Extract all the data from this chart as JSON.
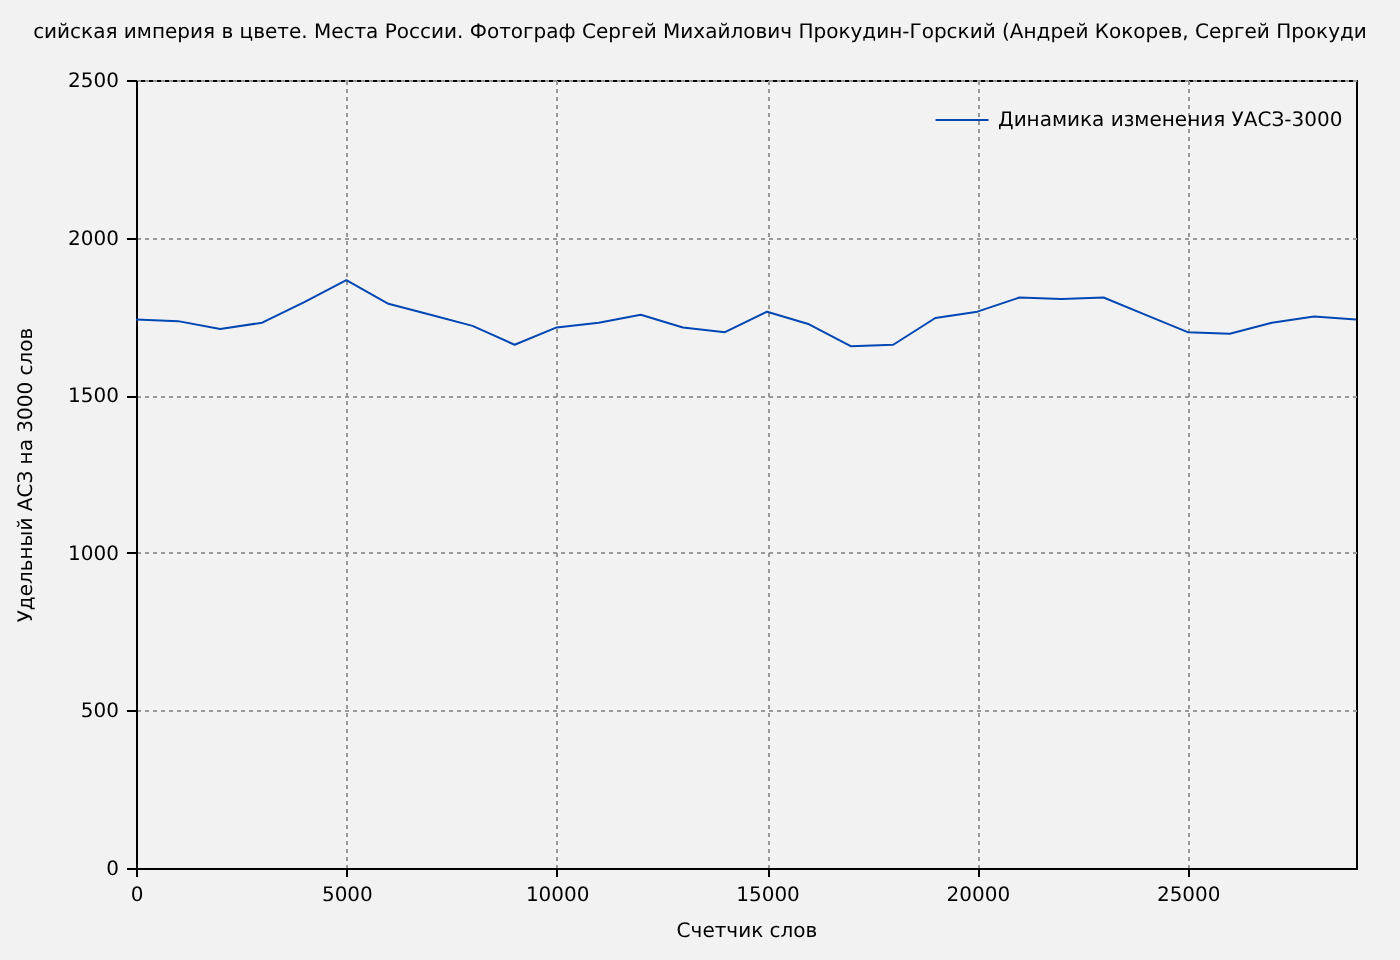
{
  "chart_data": {
    "type": "line",
    "title": "сийская империя в цвете. Места России. Фотограф Сергей Михайлович Прокудин-Горский (Андрей Кокорев, Сергей Прокуди",
    "xlabel": "Счетчик слов",
    "ylabel": "Удельный АСЗ на 3000 слов",
    "x": [
      0,
      1000,
      2000,
      3000,
      4000,
      5000,
      6000,
      7000,
      8000,
      9000,
      10000,
      11000,
      12000,
      13000,
      14000,
      15000,
      16000,
      17000,
      18000,
      19000,
      20000,
      21000,
      22000,
      23000,
      24000,
      25000,
      26000,
      27000,
      28000,
      29000
    ],
    "series": [
      {
        "name": "Динамика изменения УАСЗ-3000",
        "color": "#0047b3",
        "values": [
          1740,
          1735,
          1710,
          1730,
          1795,
          1865,
          1790,
          1755,
          1720,
          1660,
          1715,
          1730,
          1755,
          1715,
          1700,
          1765,
          1725,
          1655,
          1660,
          1745,
          1765,
          1810,
          1805,
          1810,
          1755,
          1700,
          1695,
          1730,
          1750,
          1740
        ]
      }
    ],
    "xlim": [
      0,
      29000
    ],
    "ylim": [
      0,
      2500
    ],
    "xticks": [
      0,
      5000,
      10000,
      15000,
      20000,
      25000
    ],
    "yticks": [
      0,
      500,
      1000,
      1500,
      2000,
      2500
    ],
    "grid": true,
    "legend": "top right",
    "line_style": "solid"
  }
}
